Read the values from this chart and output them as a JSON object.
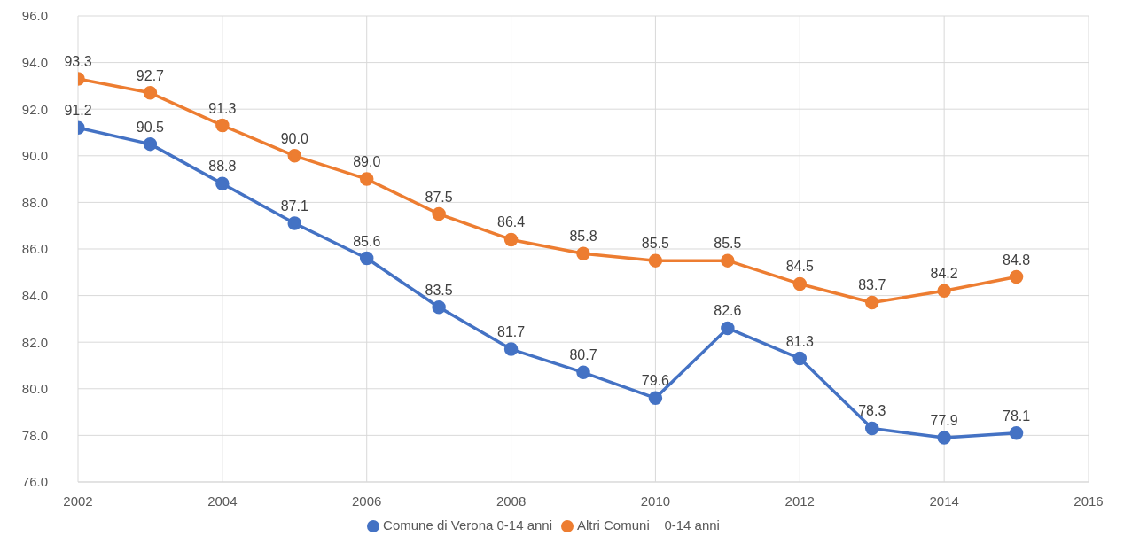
{
  "chart_data": {
    "type": "line",
    "x": [
      2002,
      2003,
      2004,
      2005,
      2006,
      2007,
      2008,
      2009,
      2010,
      2011,
      2012,
      2013,
      2014,
      2015
    ],
    "series": [
      {
        "name": "Comune di Verona 0-14 anni",
        "color": "#4472c4",
        "values": [
          91.2,
          90.5,
          88.8,
          87.1,
          85.6,
          83.5,
          81.7,
          80.7,
          79.6,
          82.6,
          81.3,
          78.3,
          77.9,
          78.1
        ],
        "value_labels": [
          "91.2",
          "90.5",
          "88.8",
          "87.1",
          "85.6",
          "83.5",
          "81.7",
          "80.7",
          "79.6",
          "82.6",
          "81.3",
          "78.3",
          "77.9",
          "78.1"
        ]
      },
      {
        "name": "Altri Comuni    0-14 anni",
        "color": "#ed7d31",
        "values": [
          93.3,
          92.7,
          91.3,
          90.0,
          89.0,
          87.5,
          86.4,
          85.8,
          85.5,
          85.5,
          84.5,
          83.7,
          84.2,
          84.8
        ],
        "value_labels": [
          "93.3",
          "92.7",
          "91.3",
          "90.0",
          "89.0",
          "87.5",
          "86.4",
          "85.8",
          "85.5",
          "85.5",
          "84.5",
          "83.7",
          "84.2",
          "84.8"
        ]
      }
    ],
    "xlim": [
      2002,
      2016
    ],
    "xticks": [
      2002,
      2004,
      2006,
      2008,
      2010,
      2012,
      2014,
      2016
    ],
    "ylim": [
      76,
      96
    ],
    "yticks": [
      {
        "value": 76,
        "label": "76.0"
      },
      {
        "value": 78,
        "label": "78.0"
      },
      {
        "value": 80,
        "label": "80.0"
      },
      {
        "value": 82,
        "label": "82.0"
      },
      {
        "value": 84,
        "label": "84.0"
      },
      {
        "value": 86,
        "label": "86.0"
      },
      {
        "value": 88,
        "label": "88.0"
      },
      {
        "value": 90,
        "label": "90.0"
      },
      {
        "value": 92,
        "label": "92.0"
      },
      {
        "value": 94,
        "label": "94.0"
      },
      {
        "value": 96,
        "label": "96.0"
      }
    ],
    "grid": true,
    "legend": "bottom",
    "marker": "circle",
    "line_style": "solid"
  }
}
